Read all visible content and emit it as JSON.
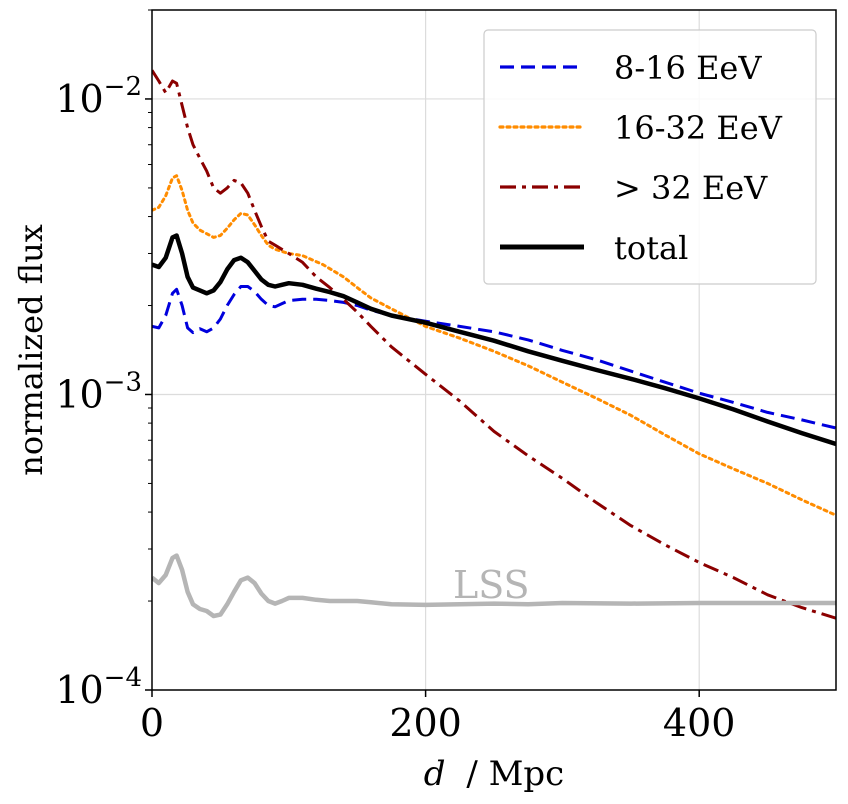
{
  "chart_data": {
    "type": "line",
    "xlabel_var": "d",
    "xlabel_unit": "/ Mpc",
    "ylabel": "normalized flux",
    "xlim": [
      0,
      500
    ],
    "ylim": [
      0.0001,
      0.02
    ],
    "yscale": "log",
    "grid": true,
    "legend_position": "top-right",
    "x_ticks": [
      {
        "value": 0,
        "label": "0"
      },
      {
        "value": 200,
        "label": "200"
      },
      {
        "value": 400,
        "label": "400"
      }
    ],
    "y_ticks": [
      {
        "value": 0.01,
        "base": "10",
        "exp": "−2"
      },
      {
        "value": 0.001,
        "base": "10",
        "exp": "−3"
      },
      {
        "value": 0.0001,
        "base": "10",
        "exp": "−4"
      }
    ],
    "series": [
      {
        "name": "8-16 EeV",
        "color": "#0000dd",
        "style": "dashed",
        "x": [
          0,
          5,
          10,
          15,
          18,
          22,
          26,
          30,
          35,
          40,
          45,
          50,
          55,
          60,
          65,
          70,
          75,
          80,
          85,
          90,
          95,
          100,
          110,
          120,
          130,
          140,
          150,
          160,
          175,
          200,
          225,
          250,
          275,
          300,
          325,
          350,
          375,
          400,
          425,
          450,
          475,
          500
        ],
        "values": [
          0.0017,
          0.00168,
          0.00185,
          0.0022,
          0.00227,
          0.002,
          0.00168,
          0.00162,
          0.00167,
          0.00163,
          0.00168,
          0.0018,
          0.002,
          0.00218,
          0.00232,
          0.00232,
          0.00223,
          0.0021,
          0.002,
          0.00198,
          0.00203,
          0.00208,
          0.0021,
          0.0021,
          0.00208,
          0.00205,
          0.002,
          0.00193,
          0.00185,
          0.00177,
          0.0017,
          0.00163,
          0.00153,
          0.00141,
          0.00131,
          0.0012,
          0.0011,
          0.00101,
          0.00094,
          0.00087,
          0.00082,
          0.00077
        ]
      },
      {
        "name": "16-32 EeV",
        "color": "#ff8c00",
        "style": "dotted",
        "x": [
          0,
          5,
          10,
          15,
          18,
          22,
          26,
          30,
          35,
          40,
          45,
          50,
          55,
          60,
          65,
          70,
          75,
          80,
          85,
          90,
          100,
          110,
          125,
          140,
          150,
          160,
          175,
          200,
          225,
          250,
          275,
          300,
          325,
          350,
          375,
          400,
          425,
          450,
          475,
          500
        ],
        "values": [
          0.0042,
          0.0043,
          0.0047,
          0.0054,
          0.0055,
          0.0049,
          0.0042,
          0.0038,
          0.0036,
          0.0035,
          0.0034,
          0.00345,
          0.00365,
          0.0039,
          0.0041,
          0.00405,
          0.00375,
          0.00345,
          0.0032,
          0.0031,
          0.003,
          0.00295,
          0.00275,
          0.0025,
          0.0023,
          0.00212,
          0.00195,
          0.0017,
          0.00155,
          0.0014,
          0.00125,
          0.0011,
          0.00097,
          0.00085,
          0.00073,
          0.00063,
          0.00056,
          0.0005,
          0.00044,
          0.00039
        ]
      },
      {
        "name": "> 32 EeV",
        "color": "#8b0000",
        "style": "dashdot",
        "x": [
          0,
          5,
          10,
          15,
          18,
          22,
          26,
          30,
          35,
          40,
          45,
          50,
          55,
          60,
          65,
          70,
          75,
          80,
          85,
          90,
          100,
          110,
          120,
          130,
          140,
          150,
          160,
          175,
          200,
          225,
          250,
          275,
          300,
          325,
          350,
          375,
          400,
          425,
          450,
          475,
          500
        ],
        "values": [
          0.0125,
          0.0115,
          0.0105,
          0.0115,
          0.0113,
          0.0095,
          0.008,
          0.007,
          0.0063,
          0.0057,
          0.005,
          0.0048,
          0.005,
          0.0053,
          0.0052,
          0.0048,
          0.0042,
          0.0037,
          0.0033,
          0.0032,
          0.003,
          0.0028,
          0.0025,
          0.0023,
          0.0021,
          0.0019,
          0.0017,
          0.00145,
          0.00117,
          0.00095,
          0.00075,
          0.00062,
          0.00052,
          0.00043,
          0.00036,
          0.00031,
          0.00027,
          0.00024,
          0.00021,
          0.00019,
          0.000175
        ]
      },
      {
        "name": "total",
        "color": "#000000",
        "style": "solid",
        "x": [
          0,
          5,
          10,
          15,
          18,
          22,
          26,
          30,
          35,
          40,
          45,
          50,
          55,
          60,
          65,
          70,
          75,
          80,
          85,
          90,
          95,
          100,
          110,
          120,
          130,
          140,
          150,
          160,
          175,
          200,
          225,
          250,
          275,
          300,
          325,
          350,
          375,
          400,
          425,
          450,
          475,
          500
        ],
        "values": [
          0.00275,
          0.0027,
          0.0029,
          0.0034,
          0.00345,
          0.003,
          0.0025,
          0.0023,
          0.00225,
          0.0022,
          0.00225,
          0.0024,
          0.00265,
          0.00285,
          0.0029,
          0.0028,
          0.00262,
          0.00245,
          0.00235,
          0.00232,
          0.00235,
          0.00238,
          0.00235,
          0.00228,
          0.00222,
          0.00215,
          0.00205,
          0.00195,
          0.00185,
          0.00175,
          0.00163,
          0.00152,
          0.0014,
          0.0013,
          0.00121,
          0.00113,
          0.00105,
          0.00097,
          0.00089,
          0.00081,
          0.00074,
          0.00068
        ]
      },
      {
        "name": "LSS",
        "color": "#b5b5b5",
        "style": "solid",
        "x": [
          0,
          5,
          10,
          15,
          18,
          22,
          26,
          30,
          35,
          40,
          45,
          50,
          55,
          60,
          65,
          70,
          75,
          80,
          85,
          90,
          95,
          100,
          110,
          120,
          130,
          140,
          150,
          160,
          175,
          200,
          225,
          250,
          275,
          300,
          350,
          400,
          450,
          500
        ],
        "values": [
          0.00024,
          0.00023,
          0.000245,
          0.00028,
          0.000285,
          0.000255,
          0.000215,
          0.000195,
          0.000188,
          0.000185,
          0.000178,
          0.00018,
          0.000195,
          0.000215,
          0.000235,
          0.00024,
          0.00023,
          0.000212,
          0.0002,
          0.000196,
          0.0002,
          0.000205,
          0.000205,
          0.000202,
          0.0002,
          0.0002,
          0.0002,
          0.000198,
          0.000195,
          0.000194,
          0.000195,
          0.000196,
          0.000195,
          0.000197,
          0.000196,
          0.000197,
          0.000197,
          0.000197
        ]
      }
    ],
    "annotations": [
      {
        "text": "LSS",
        "x": 220,
        "y": 0.000215,
        "color": "#b5b5b5"
      }
    ]
  }
}
